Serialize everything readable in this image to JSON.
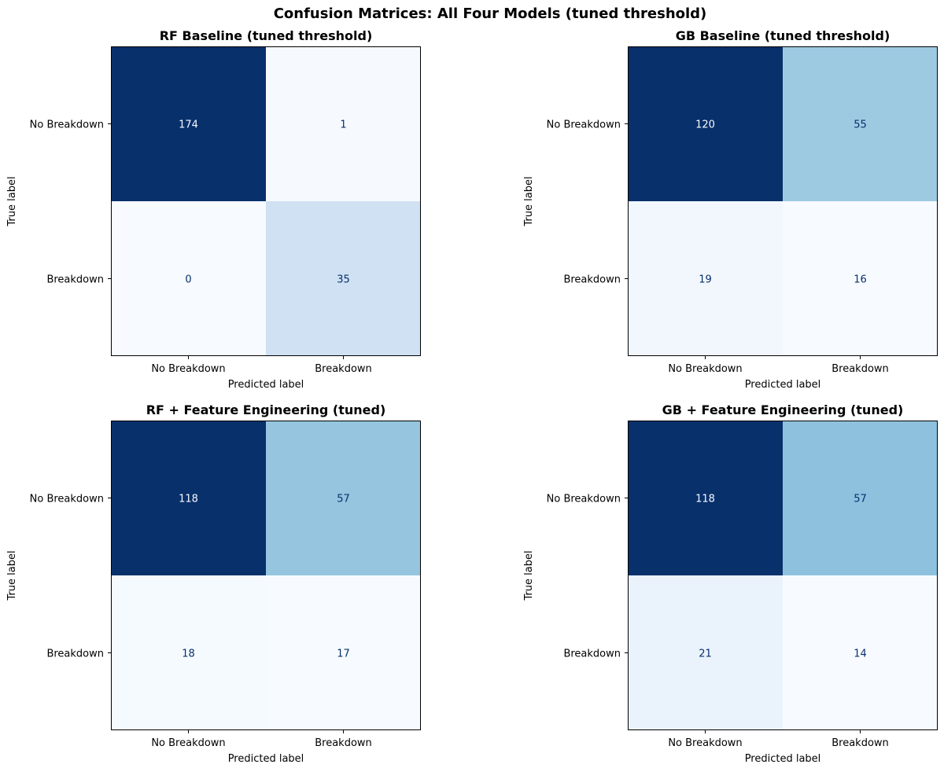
{
  "figure": {
    "title": "Confusion Matrices: All Four Models (tuned threshold)"
  },
  "chart_data": [
    {
      "type": "heatmap",
      "title": "RF Baseline (tuned threshold)",
      "xlabel": "Predicted label",
      "ylabel": "True label",
      "x_categories": [
        "No Breakdown",
        "Breakdown"
      ],
      "y_categories": [
        "No Breakdown",
        "Breakdown"
      ],
      "values": [
        [
          174,
          1
        ],
        [
          0,
          35
        ]
      ],
      "colormap": "Blues",
      "colorbar": false,
      "grid": false
    },
    {
      "type": "heatmap",
      "title": "GB Baseline (tuned threshold)",
      "xlabel": "Predicted label",
      "ylabel": "True label",
      "x_categories": [
        "No Breakdown",
        "Breakdown"
      ],
      "y_categories": [
        "No Breakdown",
        "Breakdown"
      ],
      "values": [
        [
          120,
          55
        ],
        [
          19,
          16
        ]
      ],
      "colormap": "Blues",
      "colorbar": false,
      "grid": false
    },
    {
      "type": "heatmap",
      "title": "RF + Feature Engineering (tuned)",
      "xlabel": "Predicted label",
      "ylabel": "True label",
      "x_categories": [
        "No Breakdown",
        "Breakdown"
      ],
      "y_categories": [
        "No Breakdown",
        "Breakdown"
      ],
      "values": [
        [
          118,
          57
        ],
        [
          18,
          17
        ]
      ],
      "colormap": "Blues",
      "colorbar": false,
      "grid": false
    },
    {
      "type": "heatmap",
      "title": "GB + Feature Engineering (tuned)",
      "xlabel": "Predicted label",
      "ylabel": "True label",
      "x_categories": [
        "No Breakdown",
        "Breakdown"
      ],
      "y_categories": [
        "No Breakdown",
        "Breakdown"
      ],
      "values": [
        [
          118,
          57
        ],
        [
          21,
          14
        ]
      ],
      "colormap": "Blues",
      "colorbar": false,
      "grid": false
    }
  ]
}
